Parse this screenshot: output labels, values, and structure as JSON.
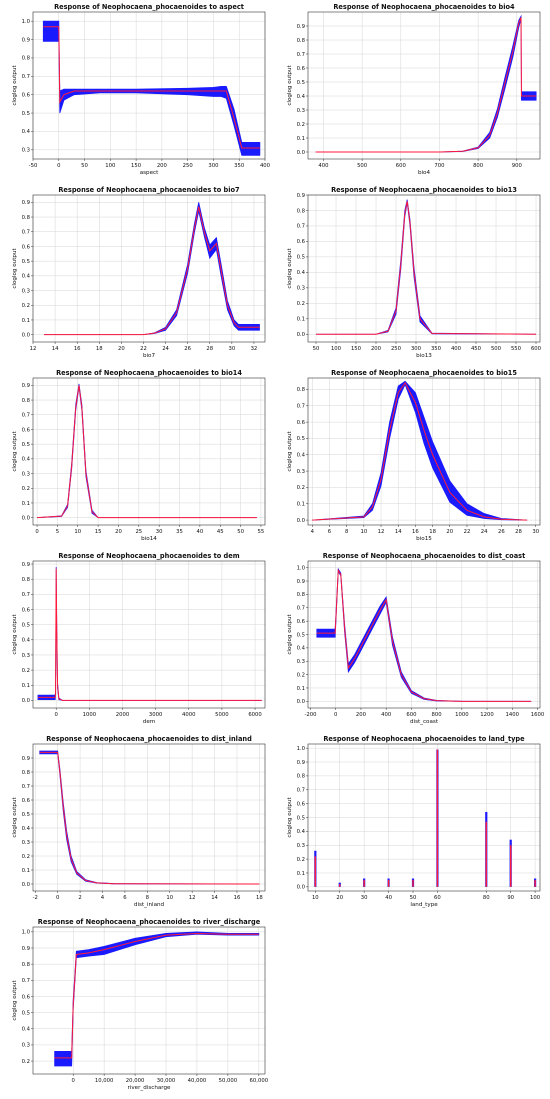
{
  "colors": {
    "band": "#1a1aff",
    "mean": "#ff1a3a"
  },
  "chart_data": [
    {
      "type": "line",
      "title": "Response of Neophocaena_phocaenoides to aspect",
      "xlabel": "aspect",
      "ylabel": "cloglog output",
      "xlim": [
        -50,
        400
      ],
      "ylim": [
        0.25,
        1.05
      ],
      "xticks": [
        -50,
        0,
        50,
        100,
        150,
        200,
        250,
        300,
        350,
        400
      ],
      "xticklabels": [
        "-50",
        "0",
        "50",
        "100",
        "150",
        "200",
        "250",
        "300",
        "350",
        "400"
      ],
      "yticks": [
        0.3,
        0.4,
        0.5,
        0.6,
        0.7,
        0.8,
        0.9,
        1.0
      ],
      "yticklabels": [
        "0.3",
        "0.4",
        "0.5",
        "0.6",
        "0.7",
        "0.8",
        "0.9",
        "1.0"
      ],
      "grid": true,
      "x": [
        -30,
        -1,
        0,
        2,
        10,
        30,
        80,
        150,
        250,
        300,
        315,
        325,
        340,
        355,
        360,
        390
      ],
      "mean": [
        0.97,
        0.97,
        0.97,
        0.56,
        0.6,
        0.62,
        0.62,
        0.62,
        0.62,
        0.62,
        0.62,
        0.62,
        0.47,
        0.31,
        0.31,
        0.31
      ],
      "upper": [
        1.0,
        1.0,
        1.0,
        0.62,
        0.63,
        0.63,
        0.63,
        0.63,
        0.635,
        0.64,
        0.645,
        0.645,
        0.52,
        0.34,
        0.34,
        0.34
      ],
      "lower": [
        0.89,
        0.89,
        0.89,
        0.5,
        0.57,
        0.6,
        0.61,
        0.61,
        0.6,
        0.59,
        0.59,
        0.58,
        0.43,
        0.27,
        0.27,
        0.27
      ]
    },
    {
      "type": "line",
      "title": "Response of Neophocaena_phocaenoides to bio4",
      "xlabel": "bio4",
      "ylabel": "cloglog output",
      "xlim": [
        360,
        960
      ],
      "ylim": [
        -0.05,
        1.0
      ],
      "xticks": [
        400,
        500,
        600,
        700,
        800,
        900
      ],
      "xticklabels": [
        "400",
        "500",
        "600",
        "700",
        "800",
        "900"
      ],
      "yticks": [
        0,
        0.1,
        0.2,
        0.3,
        0.4,
        0.5,
        0.6,
        0.7,
        0.8,
        0.9
      ],
      "yticklabels": [
        "0.0",
        "0.1",
        "0.2",
        "0.3",
        "0.4",
        "0.5",
        "0.6",
        "0.7",
        "0.8",
        "0.9"
      ],
      "grid": true,
      "x": [
        380,
        700,
        760,
        800,
        830,
        850,
        870,
        890,
        905,
        911,
        912,
        950
      ],
      "mean": [
        0,
        0,
        0.005,
        0.03,
        0.12,
        0.28,
        0.5,
        0.72,
        0.92,
        0.96,
        0.4,
        0.4
      ],
      "upper": [
        0,
        0,
        0.006,
        0.035,
        0.14,
        0.31,
        0.54,
        0.76,
        0.94,
        0.97,
        0.43,
        0.43
      ],
      "lower": [
        0,
        0,
        0.004,
        0.025,
        0.1,
        0.25,
        0.46,
        0.68,
        0.89,
        0.95,
        0.37,
        0.37
      ]
    },
    {
      "type": "line",
      "title": "Response of Neophocaena_phocaenoides to bio7",
      "xlabel": "bio7",
      "ylabel": "cloglog output",
      "xlim": [
        12,
        33
      ],
      "ylim": [
        -0.05,
        0.95
      ],
      "xticks": [
        12,
        14,
        16,
        18,
        20,
        22,
        24,
        26,
        28,
        30,
        32
      ],
      "xticklabels": [
        "12",
        "14",
        "16",
        "18",
        "20",
        "22",
        "24",
        "26",
        "28",
        "30",
        "32"
      ],
      "yticks": [
        0,
        0.1,
        0.2,
        0.3,
        0.4,
        0.5,
        0.6,
        0.7,
        0.8,
        0.9
      ],
      "yticklabels": [
        "0.0",
        "0.1",
        "0.2",
        "0.3",
        "0.4",
        "0.5",
        "0.6",
        "0.7",
        "0.8",
        "0.9"
      ],
      "grid": true,
      "x": [
        13,
        22,
        23,
        24,
        25,
        26,
        26.6,
        27,
        27.5,
        28,
        28.6,
        29,
        29.6,
        30.2,
        30.6,
        32.5
      ],
      "mean": [
        0,
        0,
        0.01,
        0.04,
        0.15,
        0.45,
        0.72,
        0.87,
        0.7,
        0.57,
        0.62,
        0.45,
        0.2,
        0.08,
        0.05,
        0.05
      ],
      "upper": [
        0,
        0,
        0.012,
        0.05,
        0.17,
        0.48,
        0.75,
        0.9,
        0.73,
        0.61,
        0.66,
        0.49,
        0.23,
        0.1,
        0.07,
        0.07
      ],
      "lower": [
        0,
        0,
        0.008,
        0.03,
        0.13,
        0.42,
        0.69,
        0.84,
        0.67,
        0.52,
        0.58,
        0.41,
        0.17,
        0.06,
        0.03,
        0.03
      ]
    },
    {
      "type": "line",
      "title": "Response of Neophocaena_phocaenoides to bio13",
      "xlabel": "bio13",
      "ylabel": "cloglog output",
      "xlim": [
        30,
        610
      ],
      "ylim": [
        -0.05,
        0.9
      ],
      "xticks": [
        50,
        100,
        150,
        200,
        250,
        300,
        350,
        400,
        450,
        500,
        550,
        600
      ],
      "xticklabels": [
        "50",
        "100",
        "150",
        "200",
        "250",
        "300",
        "350",
        "400",
        "450",
        "500",
        "550",
        "600"
      ],
      "yticks": [
        0,
        0.1,
        0.2,
        0.3,
        0.4,
        0.5,
        0.6,
        0.7,
        0.8,
        0.9
      ],
      "yticklabels": [
        "0.0",
        "0.1",
        "0.2",
        "0.3",
        "0.4",
        "0.5",
        "0.6",
        "0.7",
        "0.8",
        "0.9"
      ],
      "grid": true,
      "x": [
        50,
        200,
        230,
        250,
        262,
        272,
        278,
        285,
        295,
        310,
        340,
        600
      ],
      "mean": [
        0,
        0,
        0.02,
        0.15,
        0.45,
        0.78,
        0.86,
        0.72,
        0.4,
        0.1,
        0.005,
        0
      ],
      "upper": [
        0,
        0,
        0.025,
        0.17,
        0.48,
        0.8,
        0.87,
        0.74,
        0.43,
        0.12,
        0.007,
        0
      ],
      "lower": [
        0,
        0,
        0.015,
        0.13,
        0.42,
        0.76,
        0.85,
        0.7,
        0.37,
        0.08,
        0.003,
        0
      ]
    },
    {
      "type": "line",
      "title": "Response of Neophocaena_phocaenoides to bio14",
      "xlabel": "bio14",
      "ylabel": "cloglog output",
      "xlim": [
        -1,
        56
      ],
      "ylim": [
        -0.05,
        0.95
      ],
      "xticks": [
        0,
        5,
        10,
        15,
        20,
        25,
        30,
        35,
        40,
        45,
        50,
        55
      ],
      "xticklabels": [
        "0",
        "5",
        "10",
        "15",
        "20",
        "25",
        "30",
        "35",
        "40",
        "45",
        "50",
        "55"
      ],
      "yticks": [
        0,
        0.1,
        0.2,
        0.3,
        0.4,
        0.5,
        0.6,
        0.7,
        0.8,
        0.9
      ],
      "yticklabels": [
        "0.0",
        "0.1",
        "0.2",
        "0.3",
        "0.4",
        "0.5",
        "0.6",
        "0.7",
        "0.8",
        "0.9"
      ],
      "grid": true,
      "x": [
        0,
        6,
        7.5,
        8.5,
        9.5,
        10.3,
        11,
        12,
        13.5,
        15,
        54
      ],
      "mean": [
        0,
        0.01,
        0.08,
        0.35,
        0.75,
        0.9,
        0.75,
        0.3,
        0.04,
        0,
        0
      ],
      "upper": [
        0,
        0.012,
        0.09,
        0.37,
        0.77,
        0.91,
        0.77,
        0.32,
        0.05,
        0,
        0
      ],
      "lower": [
        0,
        0.008,
        0.07,
        0.33,
        0.73,
        0.89,
        0.73,
        0.28,
        0.03,
        0,
        0
      ]
    },
    {
      "type": "line",
      "title": "Response of Neophocaena_phocaenoides to bio15",
      "xlabel": "bio15",
      "ylabel": "cloglog output",
      "xlim": [
        3.5,
        30.5
      ],
      "ylim": [
        -0.03,
        0.87
      ],
      "xticks": [
        4,
        6,
        8,
        10,
        12,
        14,
        16,
        18,
        20,
        22,
        24,
        26,
        28,
        30
      ],
      "xticklabels": [
        "4",
        "6",
        "8",
        "10",
        "12",
        "14",
        "16",
        "18",
        "20",
        "22",
        "24",
        "26",
        "28",
        "30"
      ],
      "yticks": [
        0,
        0.1,
        0.2,
        0.3,
        0.4,
        0.5,
        0.6,
        0.7,
        0.8
      ],
      "yticklabels": [
        "0.0",
        "0.1",
        "0.2",
        "0.3",
        "0.4",
        "0.5",
        "0.6",
        "0.7",
        "0.8"
      ],
      "grid": true,
      "x": [
        4,
        10,
        11,
        12,
        13,
        14,
        14.8,
        16,
        17,
        18,
        20,
        22,
        24,
        26,
        29
      ],
      "mean": [
        0,
        0.02,
        0.08,
        0.25,
        0.55,
        0.78,
        0.84,
        0.72,
        0.55,
        0.4,
        0.17,
        0.06,
        0.02,
        0.005,
        0
      ],
      "upper": [
        0,
        0.025,
        0.1,
        0.29,
        0.6,
        0.82,
        0.85,
        0.78,
        0.63,
        0.48,
        0.24,
        0.1,
        0.04,
        0.01,
        0
      ],
      "lower": [
        0,
        0.015,
        0.06,
        0.21,
        0.5,
        0.74,
        0.83,
        0.66,
        0.47,
        0.32,
        0.11,
        0.03,
        0.01,
        0.002,
        0
      ]
    },
    {
      "type": "line",
      "title": "Response of Neophocaena_phocaenoides to dem",
      "xlabel": "dem",
      "ylabel": "cloglog output",
      "xlim": [
        -700,
        6300
      ],
      "ylim": [
        -0.05,
        0.92
      ],
      "xticks": [
        0,
        1000,
        2000,
        3000,
        4000,
        5000,
        6000
      ],
      "xticklabels": [
        "0",
        "1000",
        "2000",
        "3000",
        "4000",
        "5000",
        "6000"
      ],
      "yticks": [
        0,
        0.1,
        0.2,
        0.3,
        0.4,
        0.5,
        0.6,
        0.7,
        0.8,
        0.9
      ],
      "yticklabels": [
        "0.0",
        "0.1",
        "0.2",
        "0.3",
        "0.4",
        "0.5",
        "0.6",
        "0.7",
        "0.8",
        "0.9"
      ],
      "grid": true,
      "x": [
        -550,
        -30,
        -20,
        0,
        15,
        40,
        80,
        200,
        6200
      ],
      "mean": [
        0.02,
        0.02,
        0.05,
        0.87,
        0.5,
        0.1,
        0.01,
        0,
        0
      ],
      "upper": [
        0.035,
        0.035,
        0.06,
        0.88,
        0.52,
        0.12,
        0.015,
        0,
        0
      ],
      "lower": [
        0.005,
        0.005,
        0.04,
        0.86,
        0.48,
        0.08,
        0.005,
        0,
        0
      ]
    },
    {
      "type": "line",
      "title": "Response of Neophocaena_phocaenoides to dist_coast",
      "xlabel": "dist_coast",
      "ylabel": "cloglog output",
      "xlim": [
        -220,
        1620
      ],
      "ylim": [
        -0.05,
        1.05
      ],
      "xticks": [
        -200,
        0,
        200,
        400,
        600,
        800,
        1000,
        1200,
        1400,
        1600
      ],
      "xticklabels": [
        "-200",
        "0",
        "200",
        "400",
        "600",
        "800",
        "1000",
        "1200",
        "1400",
        "1600"
      ],
      "yticks": [
        0,
        0.1,
        0.2,
        0.3,
        0.4,
        0.5,
        0.6,
        0.7,
        0.8,
        0.9,
        1.0
      ],
      "yticklabels": [
        "0.0",
        "0.1",
        "0.2",
        "0.3",
        "0.4",
        "0.5",
        "0.6",
        "0.7",
        "0.8",
        "0.9",
        "1.0"
      ],
      "grid": true,
      "x": [
        -150,
        -5,
        0,
        20,
        40,
        70,
        100,
        150,
        250,
        350,
        400,
        450,
        520,
        600,
        700,
        800,
        1000,
        1550
      ],
      "mean": [
        0.51,
        0.51,
        0.6,
        0.98,
        0.95,
        0.55,
        0.25,
        0.32,
        0.5,
        0.68,
        0.76,
        0.45,
        0.2,
        0.07,
        0.02,
        0.005,
        0,
        0
      ],
      "upper": [
        0.54,
        0.54,
        0.63,
        0.99,
        0.96,
        0.58,
        0.28,
        0.35,
        0.53,
        0.71,
        0.78,
        0.48,
        0.22,
        0.08,
        0.025,
        0.007,
        0,
        0
      ],
      "lower": [
        0.48,
        0.48,
        0.57,
        0.97,
        0.94,
        0.52,
        0.22,
        0.29,
        0.47,
        0.65,
        0.74,
        0.42,
        0.18,
        0.06,
        0.015,
        0.003,
        0,
        0
      ]
    },
    {
      "type": "line",
      "title": "Response of Neophocaena_phocaenoides to dist_inland",
      "xlabel": "dist_inland",
      "ylabel": "cloglog output",
      "xlim": [
        -2.2,
        18.5
      ],
      "ylim": [
        -0.05,
        1.0
      ],
      "xticks": [
        -2,
        0,
        2,
        4,
        6,
        8,
        10,
        12,
        14,
        16,
        18
      ],
      "xticklabels": [
        "-2",
        "0",
        "2",
        "4",
        "6",
        "8",
        "10",
        "12",
        "14",
        "16",
        "18"
      ],
      "yticks": [
        0,
        0.1,
        0.2,
        0.3,
        0.4,
        0.5,
        0.6,
        0.7,
        0.8,
        0.9
      ],
      "yticklabels": [
        "0.0",
        "0.1",
        "0.2",
        "0.3",
        "0.4",
        "0.5",
        "0.6",
        "0.7",
        "0.8",
        "0.9"
      ],
      "grid": true,
      "x": [
        -1.6,
        -0.05,
        0,
        0.2,
        0.5,
        0.8,
        1.2,
        1.7,
        2.5,
        3.5,
        5,
        18
      ],
      "mean": [
        0.94,
        0.94,
        0.94,
        0.8,
        0.55,
        0.35,
        0.18,
        0.08,
        0.025,
        0.008,
        0.002,
        0
      ],
      "upper": [
        0.95,
        0.95,
        0.95,
        0.82,
        0.58,
        0.38,
        0.2,
        0.09,
        0.03,
        0.01,
        0.003,
        0
      ],
      "lower": [
        0.93,
        0.93,
        0.93,
        0.78,
        0.52,
        0.32,
        0.16,
        0.07,
        0.02,
        0.006,
        0.001,
        0
      ]
    },
    {
      "type": "bar",
      "title": "Response of Neophocaena_phocaenoides to land_type",
      "xlabel": "land_type",
      "ylabel": "cloglog output",
      "xlim": [
        7,
        102
      ],
      "ylim": [
        -0.03,
        1.03
      ],
      "xticks": [
        10,
        20,
        30,
        40,
        50,
        60,
        80,
        90,
        100
      ],
      "xticklabels": [
        "10",
        "20",
        "30",
        "40",
        "50",
        "60",
        "80",
        "90",
        "100"
      ],
      "yticks": [
        0,
        0.1,
        0.2,
        0.3,
        0.4,
        0.5,
        0.6,
        0.7,
        0.8,
        0.9,
        1.0
      ],
      "yticklabels": [
        "0.0",
        "0.1",
        "0.2",
        "0.3",
        "0.4",
        "0.5",
        "0.6",
        "0.7",
        "0.8",
        "0.9",
        "1.0"
      ],
      "grid": true,
      "categories": [
        10,
        20,
        30,
        40,
        50,
        60,
        80,
        90,
        100
      ],
      "values": [
        0.22,
        0.02,
        0.05,
        0.05,
        0.05,
        0.99,
        0.47,
        0.3,
        0.05
      ],
      "upper": [
        0.26,
        0.03,
        0.06,
        0.06,
        0.06,
        0.99,
        0.54,
        0.34,
        0.06
      ]
    },
    {
      "type": "line",
      "title": "Response of Neophocaena_phocaenoides to river_discharge",
      "xlabel": "river_discharge",
      "ylabel": "cloglog output",
      "xlim": [
        -13000,
        62000
      ],
      "ylim": [
        0.12,
        1.03
      ],
      "xticks": [
        0,
        10000,
        20000,
        30000,
        40000,
        50000,
        60000
      ],
      "xticklabels": [
        "0",
        "10,000",
        "20,000",
        "30,000",
        "40,000",
        "50,000",
        "60,000"
      ],
      "yticks": [
        0.2,
        0.3,
        0.4,
        0.5,
        0.6,
        0.7,
        0.8,
        0.9,
        1.0
      ],
      "yticklabels": [
        "0.2",
        "0.3",
        "0.4",
        "0.5",
        "0.6",
        "0.7",
        "0.8",
        "0.9",
        "1.0"
      ],
      "grid": true,
      "x": [
        -6000,
        -500,
        0,
        1000,
        5000,
        10000,
        20000,
        30000,
        40000,
        50000,
        60000
      ],
      "mean": [
        0.22,
        0.22,
        0.55,
        0.86,
        0.87,
        0.89,
        0.94,
        0.98,
        0.99,
        0.985,
        0.985
      ],
      "upper": [
        0.26,
        0.26,
        0.58,
        0.88,
        0.89,
        0.91,
        0.96,
        0.99,
        1.0,
        0.99,
        0.99
      ],
      "lower": [
        0.17,
        0.17,
        0.52,
        0.84,
        0.85,
        0.86,
        0.92,
        0.97,
        0.985,
        0.98,
        0.98
      ]
    }
  ]
}
